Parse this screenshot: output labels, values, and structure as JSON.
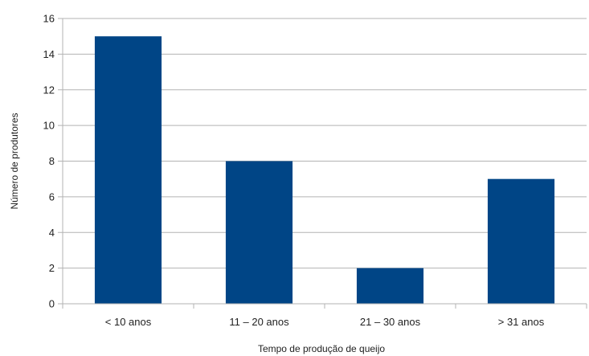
{
  "colors": {
    "bar": "#004586",
    "grid": "#b3b3b3",
    "axis": "#b3b3b3",
    "text": "#222222",
    "background": "#ffffff"
  },
  "chart_data": {
    "type": "bar",
    "title": "",
    "xlabel": "Tempo de produção de queijo",
    "ylabel": "Número de produtores",
    "categories": [
      "< 10 anos",
      "11 – 20 anos",
      "21 – 30 anos",
      "> 31 anos"
    ],
    "values": [
      15,
      8,
      2,
      7
    ],
    "ylim": [
      0,
      16
    ],
    "yticks": [
      0,
      2,
      4,
      6,
      8,
      10,
      12,
      14,
      16
    ],
    "grid": true,
    "legend": "none"
  }
}
